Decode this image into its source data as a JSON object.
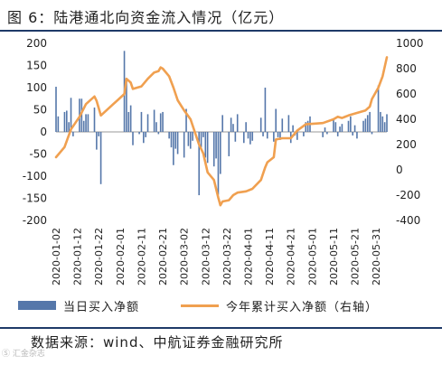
{
  "figure": {
    "title": "图 6：陆港通北向资金流入情况（亿元）",
    "source": "数据来源：wind、中航证券金融研究所",
    "watermark": "Ⓢ 汇金杂志"
  },
  "colors": {
    "bar": "#5577aa",
    "line": "#f0a050",
    "rule": "#1f3a68",
    "text": "#1f1f1f"
  },
  "chart_data": {
    "type": "bar+line",
    "legend": [
      "当日买入净额",
      "今年累计买入净额（右轴）"
    ],
    "legend_position": "bottom",
    "grid": false,
    "y_left": {
      "min": -200,
      "max": 200,
      "ticks": [
        200,
        150,
        100,
        50,
        0,
        -50,
        -100,
        -150,
        -200
      ]
    },
    "y_right": {
      "min": -400,
      "max": 1000,
      "ticks": [
        1000,
        800,
        600,
        400,
        200,
        0,
        -200,
        -400
      ]
    },
    "x_ticks": [
      "2020-01-02",
      "2020-01-12",
      "2020-01-22",
      "2020-02-01",
      "2020-02-11",
      "2020-02-21",
      "2020-03-02",
      "2020-03-12",
      "2020-03-22",
      "2020-04-01",
      "2020-04-11",
      "2020-04-21",
      "2020-05-01",
      "2020-05-11",
      "2020-05-21",
      "2020-05-31"
    ],
    "series": [
      {
        "name": "当日买入净额",
        "axis": "left",
        "type": "bar",
        "points": [
          {
            "d": "2020-01-02",
            "v": 102
          },
          {
            "d": "2020-01-03",
            "v": 35
          },
          {
            "d": "2020-01-06",
            "v": 45
          },
          {
            "d": "2020-01-07",
            "v": 48
          },
          {
            "d": "2020-01-08",
            "v": 22
          },
          {
            "d": "2020-01-09",
            "v": 77
          },
          {
            "d": "2020-01-10",
            "v": -10
          },
          {
            "d": "2020-01-13",
            "v": 75
          },
          {
            "d": "2020-01-14",
            "v": 75
          },
          {
            "d": "2020-01-15",
            "v": 25
          },
          {
            "d": "2020-01-16",
            "v": 40
          },
          {
            "d": "2020-01-17",
            "v": 40
          },
          {
            "d": "2020-01-20",
            "v": 55
          },
          {
            "d": "2020-01-21",
            "v": -40
          },
          {
            "d": "2020-01-22",
            "v": -10
          },
          {
            "d": "2020-01-23",
            "v": -118
          },
          {
            "d": "2020-02-03",
            "v": 183
          },
          {
            "d": "2020-02-04",
            "v": 118
          },
          {
            "d": "2020-02-05",
            "v": 45
          },
          {
            "d": "2020-02-06",
            "v": 60
          },
          {
            "d": "2020-02-07",
            "v": -30
          },
          {
            "d": "2020-02-10",
            "v": -5
          },
          {
            "d": "2020-02-11",
            "v": 45
          },
          {
            "d": "2020-02-12",
            "v": -25
          },
          {
            "d": "2020-02-13",
            "v": -12
          },
          {
            "d": "2020-02-14",
            "v": 40
          },
          {
            "d": "2020-02-17",
            "v": 50
          },
          {
            "d": "2020-02-18",
            "v": 22
          },
          {
            "d": "2020-02-19",
            "v": -5
          },
          {
            "d": "2020-02-20",
            "v": 42
          },
          {
            "d": "2020-02-21",
            "v": 45
          },
          {
            "d": "2020-02-24",
            "v": -15
          },
          {
            "d": "2020-02-25",
            "v": -35
          },
          {
            "d": "2020-02-26",
            "v": -75
          },
          {
            "d": "2020-02-27",
            "v": -38
          },
          {
            "d": "2020-02-28",
            "v": -50
          },
          {
            "d": "2020-03-02",
            "v": -58
          },
          {
            "d": "2020-03-03",
            "v": 52
          },
          {
            "d": "2020-03-04",
            "v": -32
          },
          {
            "d": "2020-03-05",
            "v": -38
          },
          {
            "d": "2020-03-06",
            "v": -20
          },
          {
            "d": "2020-03-09",
            "v": -143
          },
          {
            "d": "2020-03-10",
            "v": -35
          },
          {
            "d": "2020-03-11",
            "v": -12
          },
          {
            "d": "2020-03-12",
            "v": -58
          },
          {
            "d": "2020-03-13",
            "v": -70
          },
          {
            "d": "2020-03-16",
            "v": -78
          },
          {
            "d": "2020-03-17",
            "v": -60
          },
          {
            "d": "2020-03-18",
            "v": -142
          },
          {
            "d": "2020-03-19",
            "v": -95
          },
          {
            "d": "2020-03-20",
            "v": 38
          },
          {
            "d": "2020-03-23",
            "v": -55
          },
          {
            "d": "2020-03-24",
            "v": 32
          },
          {
            "d": "2020-03-25",
            "v": 18
          },
          {
            "d": "2020-03-26",
            "v": -22
          },
          {
            "d": "2020-03-27",
            "v": 40
          },
          {
            "d": "2020-03-30",
            "v": -25
          },
          {
            "d": "2020-03-31",
            "v": 22
          },
          {
            "d": "2020-04-01",
            "v": -15
          },
          {
            "d": "2020-04-02",
            "v": -28
          },
          {
            "d": "2020-04-03",
            "v": -20
          },
          {
            "d": "2020-04-07",
            "v": 32
          },
          {
            "d": "2020-04-08",
            "v": -10
          },
          {
            "d": "2020-04-09",
            "v": 100
          },
          {
            "d": "2020-04-10",
            "v": -15
          },
          {
            "d": "2020-04-13",
            "v": -22
          },
          {
            "d": "2020-04-14",
            "v": 52
          },
          {
            "d": "2020-04-15",
            "v": -12
          },
          {
            "d": "2020-04-16",
            "v": -18
          },
          {
            "d": "2020-04-17",
            "v": 30
          },
          {
            "d": "2020-04-20",
            "v": 38
          },
          {
            "d": "2020-04-21",
            "v": -25
          },
          {
            "d": "2020-04-22",
            "v": 15
          },
          {
            "d": "2020-04-23",
            "v": -8
          },
          {
            "d": "2020-04-24",
            "v": -18
          },
          {
            "d": "2020-04-27",
            "v": -10
          },
          {
            "d": "2020-04-28",
            "v": 22
          },
          {
            "d": "2020-04-29",
            "v": 25
          },
          {
            "d": "2020-04-30",
            "v": 35
          },
          {
            "d": "2020-05-06",
            "v": -12
          },
          {
            "d": "2020-05-07",
            "v": 10
          },
          {
            "d": "2020-05-08",
            "v": -5
          },
          {
            "d": "2020-05-11",
            "v": 30
          },
          {
            "d": "2020-05-12",
            "v": 22
          },
          {
            "d": "2020-05-13",
            "v": -10
          },
          {
            "d": "2020-05-14",
            "v": 12
          },
          {
            "d": "2020-05-15",
            "v": 18
          },
          {
            "d": "2020-05-18",
            "v": 25
          },
          {
            "d": "2020-05-19",
            "v": 35
          },
          {
            "d": "2020-05-20",
            "v": -8
          },
          {
            "d": "2020-05-21",
            "v": 15
          },
          {
            "d": "2020-05-22",
            "v": -15
          },
          {
            "d": "2020-05-25",
            "v": 25
          },
          {
            "d": "2020-05-26",
            "v": 30
          },
          {
            "d": "2020-05-27",
            "v": 38
          },
          {
            "d": "2020-05-28",
            "v": 45
          },
          {
            "d": "2020-05-29",
            "v": -5
          },
          {
            "d": "2020-06-01",
            "v": 105
          },
          {
            "d": "2020-06-02",
            "v": 45
          },
          {
            "d": "2020-06-03",
            "v": 35
          },
          {
            "d": "2020-06-04",
            "v": 22
          },
          {
            "d": "2020-06-05",
            "v": 40
          }
        ]
      },
      {
        "name": "今年累计买入净额（右轴）",
        "axis": "right",
        "type": "line",
        "points": [
          {
            "d": "2020-01-02",
            "v": 100
          },
          {
            "d": "2020-01-06",
            "v": 180
          },
          {
            "d": "2020-01-09",
            "v": 320
          },
          {
            "d": "2020-01-13",
            "v": 420
          },
          {
            "d": "2020-01-16",
            "v": 520
          },
          {
            "d": "2020-01-20",
            "v": 580
          },
          {
            "d": "2020-01-21",
            "v": 545
          },
          {
            "d": "2020-01-23",
            "v": 430
          },
          {
            "d": "2020-02-03",
            "v": 600
          },
          {
            "d": "2020-02-04",
            "v": 720
          },
          {
            "d": "2020-02-06",
            "v": 690
          },
          {
            "d": "2020-02-07",
            "v": 640
          },
          {
            "d": "2020-02-11",
            "v": 660
          },
          {
            "d": "2020-02-14",
            "v": 720
          },
          {
            "d": "2020-02-17",
            "v": 770
          },
          {
            "d": "2020-02-19",
            "v": 780
          },
          {
            "d": "2020-02-20",
            "v": 810
          },
          {
            "d": "2020-02-21",
            "v": 800
          },
          {
            "d": "2020-02-24",
            "v": 740
          },
          {
            "d": "2020-02-26",
            "v": 650
          },
          {
            "d": "2020-02-28",
            "v": 550
          },
          {
            "d": "2020-03-02",
            "v": 470
          },
          {
            "d": "2020-03-05",
            "v": 400
          },
          {
            "d": "2020-03-09",
            "v": 200
          },
          {
            "d": "2020-03-11",
            "v": 130
          },
          {
            "d": "2020-03-13",
            "v": -20
          },
          {
            "d": "2020-03-16",
            "v": -80
          },
          {
            "d": "2020-03-18",
            "v": -220
          },
          {
            "d": "2020-03-19",
            "v": -280
          },
          {
            "d": "2020-03-20",
            "v": -250
          },
          {
            "d": "2020-03-23",
            "v": -240
          },
          {
            "d": "2020-03-25",
            "v": -200
          },
          {
            "d": "2020-03-27",
            "v": -180
          },
          {
            "d": "2020-03-31",
            "v": -170
          },
          {
            "d": "2020-04-03",
            "v": -150
          },
          {
            "d": "2020-04-07",
            "v": -80
          },
          {
            "d": "2020-04-09",
            "v": 20
          },
          {
            "d": "2020-04-10",
            "v": 60
          },
          {
            "d": "2020-04-13",
            "v": 100
          },
          {
            "d": "2020-04-14",
            "v": 240
          },
          {
            "d": "2020-04-17",
            "v": 250
          },
          {
            "d": "2020-04-21",
            "v": 250
          },
          {
            "d": "2020-04-24",
            "v": 310
          },
          {
            "d": "2020-04-28",
            "v": 360
          },
          {
            "d": "2020-05-06",
            "v": 370
          },
          {
            "d": "2020-05-11",
            "v": 400
          },
          {
            "d": "2020-05-13",
            "v": 420
          },
          {
            "d": "2020-05-15",
            "v": 410
          },
          {
            "d": "2020-05-18",
            "v": 430
          },
          {
            "d": "2020-05-20",
            "v": 440
          },
          {
            "d": "2020-05-22",
            "v": 450
          },
          {
            "d": "2020-05-26",
            "v": 470
          },
          {
            "d": "2020-05-28",
            "v": 500
          },
          {
            "d": "2020-05-29",
            "v": 560
          },
          {
            "d": "2020-06-01",
            "v": 650
          },
          {
            "d": "2020-06-03",
            "v": 740
          },
          {
            "d": "2020-06-05",
            "v": 890
          }
        ]
      }
    ]
  }
}
